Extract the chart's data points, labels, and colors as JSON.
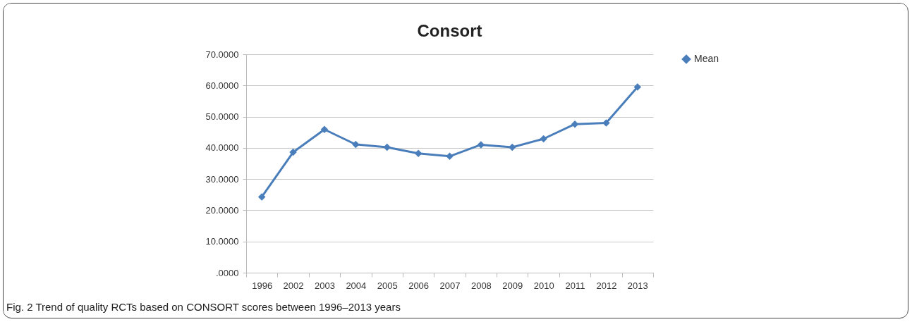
{
  "chart_data": {
    "type": "line",
    "title": "Consort",
    "categories": [
      "1996",
      "2002",
      "2003",
      "2004",
      "2005",
      "2006",
      "2007",
      "2008",
      "2009",
      "2010",
      "2011",
      "2012",
      "2013"
    ],
    "series": [
      {
        "name": "Mean",
        "color": "#4a7ebb",
        "values": [
          24.3,
          38.6,
          45.9,
          41.1,
          40.2,
          38.2,
          37.3,
          41.0,
          40.2,
          42.9,
          47.6,
          48.0,
          59.5
        ]
      }
    ],
    "ylim": [
      0,
      70
    ],
    "yticks": [
      {
        "value": 0,
        "label": ".0000"
      },
      {
        "value": 10,
        "label": "10.0000"
      },
      {
        "value": 20,
        "label": "20.0000"
      },
      {
        "value": 30,
        "label": "30.0000"
      },
      {
        "value": 40,
        "label": "40.0000"
      },
      {
        "value": 50,
        "label": "50.0000"
      },
      {
        "value": 60,
        "label": "60.0000"
      },
      {
        "value": 70,
        "label": "70.0000"
      }
    ],
    "grid": "y",
    "legend": "right",
    "marker": "diamond",
    "line_style": "solid",
    "annotations": [
      "Fig. 2 Trend of quality RCTs based on CONSORT scores between 1996–2013 years"
    ]
  }
}
